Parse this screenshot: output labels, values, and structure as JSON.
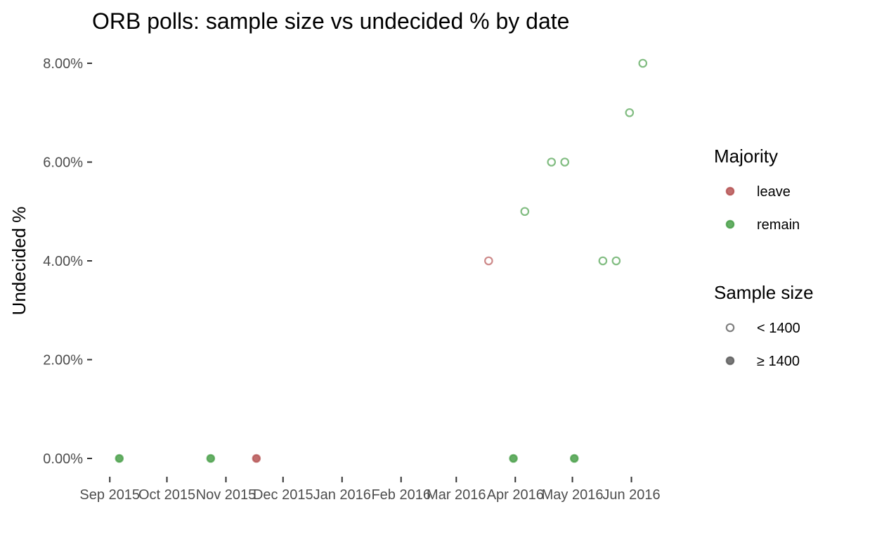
{
  "chart_data": {
    "type": "scatter",
    "title": "ORB polls: sample size vs undecided % by date",
    "xlabel": "",
    "ylabel": "Undecided %",
    "xlim": [
      "2015-08-26",
      "2016-06-20"
    ],
    "ylim": [
      0,
      8
    ],
    "x_ticks": [
      {
        "date": "2015-09-01",
        "label": "Sep 2015"
      },
      {
        "date": "2015-10-01",
        "label": "Oct 2015"
      },
      {
        "date": "2015-11-01",
        "label": "Nov 2015"
      },
      {
        "date": "2015-12-01",
        "label": "Dec 2015"
      },
      {
        "date": "2016-01-01",
        "label": "Jan 2016"
      },
      {
        "date": "2016-02-01",
        "label": "Feb 2016"
      },
      {
        "date": "2016-03-01",
        "label": "Mar 2016"
      },
      {
        "date": "2016-04-01",
        "label": "Apr 2016"
      },
      {
        "date": "2016-05-01",
        "label": "May 2016"
      },
      {
        "date": "2016-06-01",
        "label": "Jun 2016"
      }
    ],
    "y_ticks": [
      {
        "value": 0,
        "label": "0.00%"
      },
      {
        "value": 2,
        "label": "2.00%"
      },
      {
        "value": 4,
        "label": "4.00%"
      },
      {
        "value": 6,
        "label": "6.00%"
      },
      {
        "value": 8,
        "label": "8.00%"
      }
    ],
    "grid": false,
    "legend_position": "right",
    "colors": {
      "leave": "#b24a4a",
      "remain": "#3f9a3f",
      "neutral": "#555555"
    },
    "legends": [
      {
        "title": "Majority",
        "entries": [
          {
            "label": "leave",
            "key": "leave",
            "style": "filled"
          },
          {
            "label": "remain",
            "key": "remain",
            "style": "filled"
          }
        ]
      },
      {
        "title": "Sample size",
        "entries": [
          {
            "label": "< 1400",
            "key": "neutral",
            "style": "hollow"
          },
          {
            "label": "≥ 1400",
            "key": "neutral",
            "style": "filled"
          }
        ]
      }
    ],
    "points": [
      {
        "date": "2015-09-06",
        "undecided": 0,
        "majority": "remain",
        "sample": "≥ 1400"
      },
      {
        "date": "2015-10-24",
        "undecided": 0,
        "majority": "remain",
        "sample": "≥ 1400"
      },
      {
        "date": "2015-11-17",
        "undecided": 0,
        "majority": "leave",
        "sample": "≥ 1400"
      },
      {
        "date": "2016-03-18",
        "undecided": 4,
        "majority": "leave",
        "sample": "< 1400"
      },
      {
        "date": "2016-03-31",
        "undecided": 0,
        "majority": "remain",
        "sample": "≥ 1400"
      },
      {
        "date": "2016-04-06",
        "undecided": 5,
        "majority": "remain",
        "sample": "< 1400"
      },
      {
        "date": "2016-04-20",
        "undecided": 6,
        "majority": "remain",
        "sample": "< 1400"
      },
      {
        "date": "2016-04-27",
        "undecided": 6,
        "majority": "remain",
        "sample": "< 1400"
      },
      {
        "date": "2016-05-02",
        "undecided": 0,
        "majority": "remain",
        "sample": "≥ 1400"
      },
      {
        "date": "2016-05-17",
        "undecided": 4,
        "majority": "remain",
        "sample": "< 1400"
      },
      {
        "date": "2016-05-24",
        "undecided": 4,
        "majority": "remain",
        "sample": "< 1400"
      },
      {
        "date": "2016-05-31",
        "undecided": 7,
        "majority": "remain",
        "sample": "< 1400"
      },
      {
        "date": "2016-06-07",
        "undecided": 8,
        "majority": "remain",
        "sample": "< 1400"
      }
    ]
  }
}
